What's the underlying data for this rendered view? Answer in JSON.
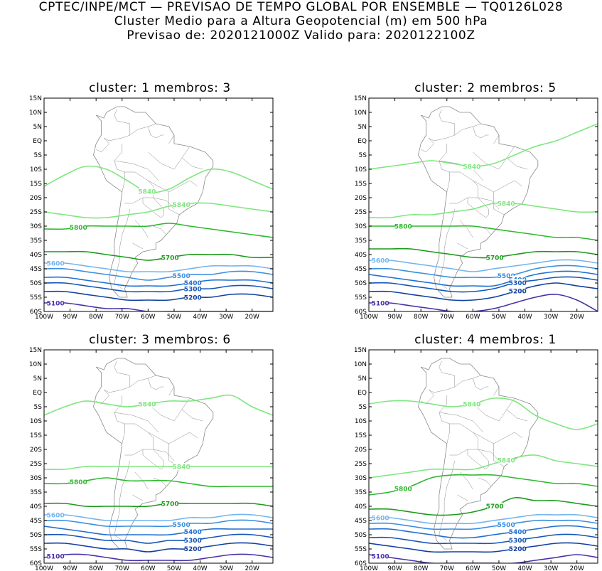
{
  "header": {
    "line1": "CPTEC/INPE/MCT — PREVISAO DE TEMPO GLOBAL POR ENSEMBLE — TQ0126L028",
    "line2": "Cluster Medio para a Altura Geopotencial (m) em 500 hPa",
    "line3": "Previsao de: 2020121000Z    Valido para: 2020122100Z"
  },
  "axes": {
    "lat_labels": [
      "15N",
      "10N",
      "5N",
      "EQ",
      "5S",
      "10S",
      "15S",
      "20S",
      "25S",
      "30S",
      "35S",
      "40S",
      "45S",
      "50S",
      "55S",
      "60S"
    ],
    "lon_labels": [
      "100W",
      "90W",
      "80W",
      "70W",
      "60W",
      "50W",
      "40W",
      "30W",
      "20W"
    ]
  },
  "colors": {
    "c5840": "#7ee67e",
    "c5800": "#2eb82e",
    "c5700": "#1a9a1a",
    "c5600": "#74b4ee",
    "c5500": "#3a8ee0",
    "c5400": "#1f6fd0",
    "c5300": "#1555b8",
    "c5200": "#1040a0",
    "c5100": "#4a30a8",
    "coast": "#8a8a8a"
  },
  "panels": [
    {
      "title": "cluster: 1   membros: 3",
      "contours": [
        {
          "level": 5840,
          "label": "5840",
          "color": "c5840",
          "lats": [
            -16,
            -12,
            -9,
            -10,
            -14,
            -18,
            -17,
            -13,
            -10,
            -11,
            -14,
            -17
          ]
        },
        {
          "level": 5840,
          "label": "5840",
          "color": "c5840",
          "lats": [
            -25,
            -26,
            -27,
            -27,
            -26,
            -25,
            -23,
            -22,
            -22,
            -23,
            -24,
            -25
          ]
        },
        {
          "level": 5800,
          "label": "5800",
          "color": "c5800",
          "lats": [
            -31,
            -31,
            -30,
            -30,
            -30,
            -30,
            -29,
            -30,
            -31,
            -32,
            -33,
            -34
          ]
        },
        {
          "level": 5700,
          "label": "5700",
          "color": "c5700",
          "lats": [
            -39,
            -39,
            -39,
            -40,
            -41,
            -42,
            -41,
            -40,
            -40,
            -40,
            -41,
            -41
          ]
        },
        {
          "level": 5600,
          "label": "5600",
          "color": "c5600",
          "lats": [
            -43,
            -43,
            -44,
            -45,
            -46,
            -46,
            -46,
            -45,
            -44,
            -44,
            -44,
            -45
          ]
        },
        {
          "level": 5500,
          "label": "5500",
          "color": "c5500",
          "lats": [
            -45,
            -45,
            -46,
            -47,
            -48,
            -49,
            -48,
            -47,
            -47,
            -46,
            -46,
            -47
          ]
        },
        {
          "level": 5400,
          "label": "5400",
          "color": "c5400",
          "lats": [
            -48,
            -48,
            -49,
            -50,
            -51,
            -51,
            -51,
            -50,
            -49,
            -49,
            -49,
            -50
          ]
        },
        {
          "level": 5300,
          "label": "5300",
          "color": "c5300",
          "lats": [
            -50,
            -50,
            -51,
            -52,
            -53,
            -53,
            -53,
            -52,
            -52,
            -51,
            -51,
            -52
          ]
        },
        {
          "level": 5200,
          "label": "5200",
          "color": "c5200",
          "lats": [
            -53,
            -53,
            -54,
            -55,
            -56,
            -56,
            -56,
            -55,
            -55,
            -54,
            -54,
            -55
          ]
        },
        {
          "level": 5100,
          "label": "5100",
          "color": "c5100",
          "lats": [
            -57,
            -57,
            -58,
            -59,
            -59,
            -60,
            -60,
            -60,
            -60,
            -60,
            -60,
            -60
          ]
        }
      ]
    },
    {
      "title": "cluster: 2   membros: 5",
      "contours": [
        {
          "level": 5840,
          "label": "5840",
          "color": "c5840",
          "lats": [
            -10,
            -9,
            -8,
            -7,
            -8,
            -9,
            -8,
            -5,
            -2,
            0,
            3,
            6
          ]
        },
        {
          "level": 5840,
          "label": "5840",
          "color": "c5840",
          "lats": [
            -27,
            -27,
            -26,
            -26,
            -25,
            -24,
            -22,
            -22,
            -23,
            -24,
            -25,
            -25
          ]
        },
        {
          "level": 5800,
          "label": "5800",
          "color": "c5800",
          "lats": [
            -30,
            -30,
            -30,
            -30,
            -30,
            -30,
            -31,
            -32,
            -33,
            -34,
            -34,
            -35
          ]
        },
        {
          "level": 5700,
          "label": "5700",
          "color": "c5700",
          "lats": [
            -38,
            -38,
            -38,
            -39,
            -40,
            -41,
            -41,
            -40,
            -39,
            -39,
            -39,
            -40
          ]
        },
        {
          "level": 5600,
          "label": "5600",
          "color": "c5600",
          "lats": [
            -42,
            -42,
            -43,
            -44,
            -45,
            -46,
            -45,
            -44,
            -43,
            -42,
            -42,
            -43
          ]
        },
        {
          "level": 5500,
          "label": "5500",
          "color": "c5500",
          "lats": [
            -45,
            -45,
            -46,
            -47,
            -48,
            -48,
            -48,
            -47,
            -45,
            -44,
            -44,
            -45
          ]
        },
        {
          "level": 5400,
          "label": "5400",
          "color": "c5400",
          "lats": [
            -47,
            -48,
            -49,
            -50,
            -51,
            -51,
            -51,
            -49,
            -47,
            -46,
            -46,
            -47
          ]
        },
        {
          "level": 5300,
          "label": "5300",
          "color": "c5300",
          "lats": [
            -50,
            -50,
            -51,
            -52,
            -53,
            -53,
            -52,
            -50,
            -49,
            -48,
            -48,
            -49
          ]
        },
        {
          "level": 5200,
          "label": "5200",
          "color": "c5200",
          "lats": [
            -53,
            -53,
            -54,
            -55,
            -56,
            -56,
            -55,
            -53,
            -51,
            -50,
            -51,
            -52
          ]
        },
        {
          "level": 5100,
          "label": "5100",
          "color": "c5100",
          "lats": [
            -57,
            -57,
            -58,
            -59,
            -60,
            -60,
            -59,
            -57,
            -55,
            -54,
            -56,
            -60
          ]
        }
      ]
    },
    {
      "title": "cluster: 3   membros: 6",
      "contours": [
        {
          "level": 5840,
          "label": "5840",
          "color": "c5840",
          "lats": [
            -8,
            -5,
            -3,
            -4,
            -5,
            -4,
            -3,
            -3,
            -2,
            -1,
            -5,
            -8
          ]
        },
        {
          "level": 5840,
          "label": "5840",
          "color": "c5840",
          "lats": [
            -27,
            -27,
            -26,
            -26,
            -26,
            -26,
            -26,
            -26,
            -26,
            -26,
            -26,
            -26
          ]
        },
        {
          "level": 5800,
          "label": "5800",
          "color": "c5800",
          "lats": [
            -32,
            -32,
            -31,
            -30,
            -31,
            -31,
            -31,
            -32,
            -33,
            -33,
            -33,
            -33
          ]
        },
        {
          "level": 5700,
          "label": "5700",
          "color": "c5700",
          "lats": [
            -39,
            -39,
            -40,
            -40,
            -40,
            -40,
            -39,
            -39,
            -39,
            -39,
            -39,
            -40
          ]
        },
        {
          "level": 5600,
          "label": "5600",
          "color": "c5600",
          "lats": [
            -43,
            -43,
            -44,
            -45,
            -45,
            -45,
            -45,
            -44,
            -44,
            -43,
            -43,
            -44
          ]
        },
        {
          "level": 5500,
          "label": "5500",
          "color": "c5500",
          "lats": [
            -45,
            -45,
            -46,
            -47,
            -47,
            -47,
            -47,
            -46,
            -46,
            -45,
            -45,
            -46
          ]
        },
        {
          "level": 5400,
          "label": "5400",
          "color": "c5400",
          "lats": [
            -47,
            -48,
            -49,
            -50,
            -50,
            -50,
            -50,
            -49,
            -48,
            -48,
            -48,
            -48
          ]
        },
        {
          "level": 5300,
          "label": "5300",
          "color": "c5300",
          "lats": [
            -50,
            -50,
            -51,
            -52,
            -52,
            -53,
            -52,
            -52,
            -51,
            -50,
            -50,
            -51
          ]
        },
        {
          "level": 5200,
          "label": "5200",
          "color": "c5200",
          "lats": [
            -53,
            -53,
            -54,
            -55,
            -55,
            -56,
            -55,
            -55,
            -54,
            -53,
            -53,
            -54
          ]
        },
        {
          "level": 5100,
          "label": "5100",
          "color": "c5100",
          "lats": [
            -58,
            -57,
            -57,
            -58,
            -59,
            -59,
            -59,
            -59,
            -58,
            -57,
            -57,
            -58
          ]
        }
      ]
    },
    {
      "title": "cluster: 4   membros: 1",
      "contours": [
        {
          "level": 5840,
          "label": "5840",
          "color": "c5840",
          "lats": [
            -4,
            -3,
            -3,
            -4,
            -5,
            -4,
            -2,
            -3,
            -8,
            -11,
            -13,
            -11
          ]
        },
        {
          "level": 5840,
          "label": "5840",
          "color": "c5840",
          "lats": [
            -30,
            -29,
            -28,
            -27,
            -27,
            -27,
            -25,
            -23,
            -22,
            -24,
            -25,
            -26
          ]
        },
        {
          "level": 5800,
          "label": "5800",
          "color": "c5800",
          "lats": [
            -36,
            -35,
            -33,
            -30,
            -29,
            -29,
            -29,
            -30,
            -31,
            -32,
            -32,
            -33
          ]
        },
        {
          "level": 5700,
          "label": "5700",
          "color": "c5700",
          "lats": [
            -41,
            -41,
            -42,
            -43,
            -43,
            -42,
            -40,
            -37,
            -38,
            -38,
            -39,
            -40
          ]
        },
        {
          "level": 5600,
          "label": "5600",
          "color": "c5600",
          "lats": [
            -44,
            -44,
            -45,
            -46,
            -46,
            -46,
            -45,
            -44,
            -43,
            -43,
            -43,
            -44
          ]
        },
        {
          "level": 5500,
          "label": "5500",
          "color": "c5500",
          "lats": [
            -46,
            -46,
            -47,
            -48,
            -48,
            -48,
            -47,
            -46,
            -45,
            -45,
            -45,
            -46
          ]
        },
        {
          "level": 5400,
          "label": "5400",
          "color": "c5400",
          "lats": [
            -48,
            -48,
            -49,
            -50,
            -51,
            -51,
            -50,
            -49,
            -48,
            -47,
            -47,
            -48
          ]
        },
        {
          "level": 5300,
          "label": "5300",
          "color": "c5300",
          "lats": [
            -51,
            -51,
            -52,
            -53,
            -53,
            -53,
            -53,
            -52,
            -51,
            -50,
            -50,
            -51
          ]
        },
        {
          "level": 5200,
          "label": "5200",
          "color": "c5200",
          "lats": [
            -53,
            -54,
            -55,
            -56,
            -56,
            -56,
            -56,
            -55,
            -54,
            -53,
            -53,
            -54
          ]
        },
        {
          "level": 5100,
          "label": "5100",
          "color": "c5100",
          "lats": [
            -57,
            -58,
            -59,
            -60,
            -60,
            -60,
            -60,
            -60,
            -59,
            -58,
            -57,
            -58
          ]
        }
      ]
    }
  ]
}
